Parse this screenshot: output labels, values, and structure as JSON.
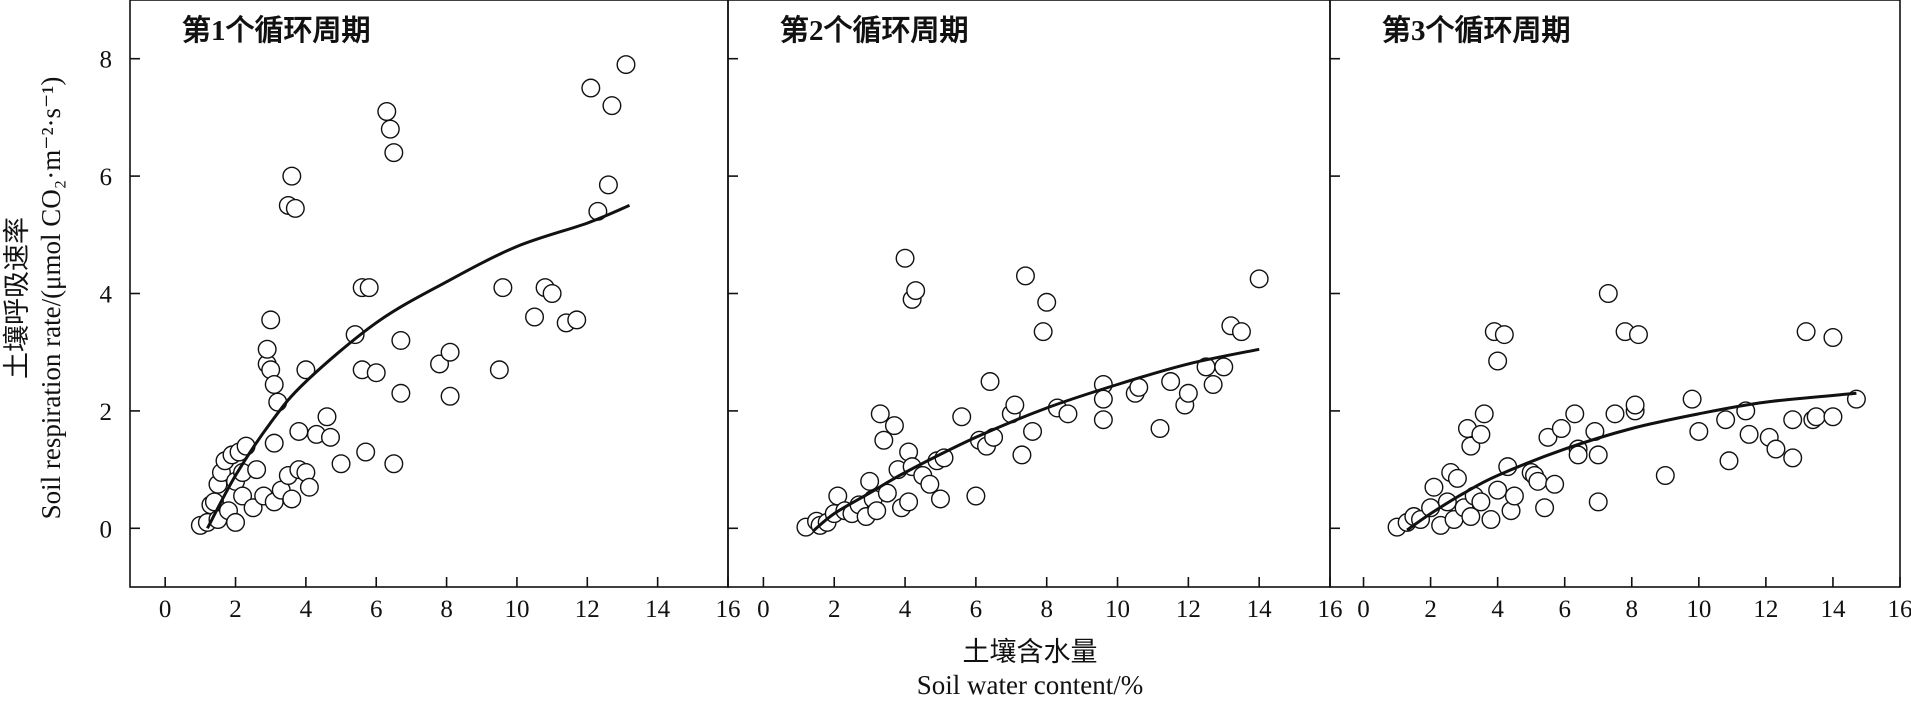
{
  "chart_data": {
    "type": "scatter",
    "x_axis_title_cn": "土壤含水量",
    "x_axis_title_en": "Soil water content/%",
    "y_axis_title_cn": "土壤呼吸速率",
    "y_axis_title_en": "Soil respiration rate/(μmol CO₂·m⁻²·s⁻¹)",
    "xlim": [
      -1,
      16
    ],
    "ylim": [
      -1,
      9
    ],
    "x_ticks": [
      0,
      2,
      4,
      6,
      8,
      10,
      12,
      14,
      16
    ],
    "y_ticks": [
      0,
      2,
      4,
      6,
      8
    ],
    "x_tick_labels": [
      "0",
      "2",
      "4",
      "6",
      "8",
      "10",
      "12",
      "14",
      "16"
    ],
    "y_tick_labels": [
      "0",
      "2",
      "4",
      "6",
      "8"
    ],
    "grid": false,
    "marker": "open-circle",
    "panels": [
      {
        "title": "第1个循环周期",
        "fit_curve": [
          [
            1.2,
            0.0
          ],
          [
            2,
            0.9
          ],
          [
            3,
            1.8
          ],
          [
            4,
            2.5
          ],
          [
            6,
            3.5
          ],
          [
            8,
            4.2
          ],
          [
            10,
            4.8
          ],
          [
            12,
            5.2
          ],
          [
            13.2,
            5.5
          ]
        ],
        "points": [
          [
            1,
            0.05
          ],
          [
            1.2,
            0.1
          ],
          [
            1.3,
            0.4
          ],
          [
            1.4,
            0.45
          ],
          [
            1.5,
            0.15
          ],
          [
            1.5,
            0.75
          ],
          [
            1.6,
            0.95
          ],
          [
            1.7,
            1.15
          ],
          [
            1.8,
            0.3
          ],
          [
            1.9,
            1.25
          ],
          [
            2,
            0.1
          ],
          [
            2,
            0.8
          ],
          [
            2.1,
            1.3
          ],
          [
            2.2,
            0.55
          ],
          [
            2.2,
            0.95
          ],
          [
            2.3,
            1.4
          ],
          [
            2.5,
            0.35
          ],
          [
            2.6,
            1.0
          ],
          [
            2.8,
            0.55
          ],
          [
            2.9,
            2.8
          ],
          [
            2.9,
            3.05
          ],
          [
            3,
            2.7
          ],
          [
            3,
            3.55
          ],
          [
            3.1,
            2.45
          ],
          [
            3.1,
            1.45
          ],
          [
            3.1,
            0.45
          ],
          [
            3.2,
            2.15
          ],
          [
            3.3,
            0.65
          ],
          [
            3.5,
            0.9
          ],
          [
            3.5,
            5.5
          ],
          [
            3.6,
            6.0
          ],
          [
            3.6,
            0.5
          ],
          [
            3.7,
            5.45
          ],
          [
            3.8,
            1.0
          ],
          [
            3.8,
            1.65
          ],
          [
            4,
            2.7
          ],
          [
            4,
            0.95
          ],
          [
            4.1,
            0.7
          ],
          [
            4.3,
            1.6
          ],
          [
            4.6,
            1.9
          ],
          [
            4.7,
            1.55
          ],
          [
            5,
            1.1
          ],
          [
            5.4,
            3.3
          ],
          [
            5.6,
            2.7
          ],
          [
            5.6,
            4.1
          ],
          [
            5.7,
            1.3
          ],
          [
            5.8,
            4.1
          ],
          [
            6,
            2.65
          ],
          [
            6.3,
            7.1
          ],
          [
            6.4,
            6.8
          ],
          [
            6.5,
            6.4
          ],
          [
            6.5,
            1.1
          ],
          [
            6.7,
            3.2
          ],
          [
            6.7,
            2.3
          ],
          [
            7.8,
            2.8
          ],
          [
            8.1,
            3.0
          ],
          [
            8.1,
            2.25
          ],
          [
            9.5,
            2.7
          ],
          [
            9.6,
            4.1
          ],
          [
            10.5,
            3.6
          ],
          [
            10.8,
            4.1
          ],
          [
            11,
            4.0
          ],
          [
            11.4,
            3.5
          ],
          [
            11.7,
            3.55
          ],
          [
            12.1,
            7.5
          ],
          [
            12.3,
            5.4
          ],
          [
            12.6,
            5.85
          ],
          [
            12.7,
            7.2
          ],
          [
            13.1,
            7.9
          ]
        ]
      },
      {
        "title": "第2个循环周期",
        "fit_curve": [
          [
            1.4,
            -0.05
          ],
          [
            2,
            0.25
          ],
          [
            3,
            0.6
          ],
          [
            4,
            0.95
          ],
          [
            6,
            1.55
          ],
          [
            8,
            2.05
          ],
          [
            10,
            2.45
          ],
          [
            12,
            2.8
          ],
          [
            14,
            3.05
          ]
        ],
        "points": [
          [
            1.2,
            0.02
          ],
          [
            1.5,
            0.12
          ],
          [
            1.6,
            0.05
          ],
          [
            1.8,
            0.1
          ],
          [
            2,
            0.25
          ],
          [
            2.1,
            0.55
          ],
          [
            2.3,
            0.3
          ],
          [
            2.5,
            0.25
          ],
          [
            2.7,
            0.4
          ],
          [
            2.9,
            0.2
          ],
          [
            3,
            0.8
          ],
          [
            3.1,
            0.5
          ],
          [
            3.2,
            0.3
          ],
          [
            3.3,
            1.95
          ],
          [
            3.4,
            1.5
          ],
          [
            3.5,
            0.6
          ],
          [
            3.7,
            1.75
          ],
          [
            3.8,
            1.0
          ],
          [
            3.9,
            0.35
          ],
          [
            4,
            4.6
          ],
          [
            4.1,
            0.45
          ],
          [
            4.1,
            1.3
          ],
          [
            4.2,
            3.9
          ],
          [
            4.2,
            1.05
          ],
          [
            4.3,
            4.05
          ],
          [
            4.5,
            0.9
          ],
          [
            4.7,
            0.75
          ],
          [
            4.9,
            1.15
          ],
          [
            5,
            0.5
          ],
          [
            5.1,
            1.2
          ],
          [
            5.6,
            1.9
          ],
          [
            6,
            0.55
          ],
          [
            6.1,
            1.5
          ],
          [
            6.3,
            1.4
          ],
          [
            6.4,
            2.5
          ],
          [
            6.5,
            1.55
          ],
          [
            7,
            1.95
          ],
          [
            7.1,
            2.1
          ],
          [
            7.3,
            1.25
          ],
          [
            7.4,
            4.3
          ],
          [
            7.6,
            1.65
          ],
          [
            7.9,
            3.35
          ],
          [
            8,
            3.85
          ],
          [
            8.3,
            2.05
          ],
          [
            8.6,
            1.95
          ],
          [
            9.6,
            2.45
          ],
          [
            9.6,
            1.85
          ],
          [
            9.6,
            2.2
          ],
          [
            10.5,
            2.3
          ],
          [
            10.6,
            2.4
          ],
          [
            11.2,
            1.7
          ],
          [
            11.5,
            2.5
          ],
          [
            11.9,
            2.1
          ],
          [
            12,
            2.3
          ],
          [
            12.5,
            2.75
          ],
          [
            12.7,
            2.45
          ],
          [
            13,
            2.75
          ],
          [
            13.2,
            3.45
          ],
          [
            13.5,
            3.35
          ],
          [
            14,
            4.25
          ]
        ]
      },
      {
        "title": "第3个循环周期",
        "fit_curve": [
          [
            1.3,
            -0.03
          ],
          [
            2,
            0.25
          ],
          [
            3,
            0.6
          ],
          [
            4,
            0.9
          ],
          [
            6,
            1.35
          ],
          [
            8,
            1.7
          ],
          [
            10,
            1.95
          ],
          [
            12,
            2.15
          ],
          [
            14.7,
            2.3
          ]
        ],
        "points": [
          [
            1,
            0.02
          ],
          [
            1.3,
            0.1
          ],
          [
            1.5,
            0.2
          ],
          [
            1.7,
            0.15
          ],
          [
            2,
            0.35
          ],
          [
            2.1,
            0.7
          ],
          [
            2.3,
            0.05
          ],
          [
            2.5,
            0.45
          ],
          [
            2.6,
            0.95
          ],
          [
            2.7,
            0.15
          ],
          [
            2.8,
            0.85
          ],
          [
            3,
            0.35
          ],
          [
            3.1,
            1.7
          ],
          [
            3.2,
            0.2
          ],
          [
            3.2,
            1.4
          ],
          [
            3.3,
            0.55
          ],
          [
            3.5,
            0.45
          ],
          [
            3.5,
            1.6
          ],
          [
            3.6,
            1.95
          ],
          [
            3.8,
            0.15
          ],
          [
            3.9,
            3.35
          ],
          [
            4,
            2.85
          ],
          [
            4,
            0.65
          ],
          [
            4.2,
            3.3
          ],
          [
            4.3,
            1.05
          ],
          [
            4.4,
            0.3
          ],
          [
            4.5,
            0.55
          ],
          [
            5,
            0.95
          ],
          [
            5.1,
            0.9
          ],
          [
            5.2,
            0.8
          ],
          [
            5.4,
            0.35
          ],
          [
            5.5,
            1.55
          ],
          [
            5.7,
            0.75
          ],
          [
            5.9,
            1.7
          ],
          [
            6.3,
            1.95
          ],
          [
            6.4,
            1.35
          ],
          [
            6.4,
            1.25
          ],
          [
            6.9,
            1.65
          ],
          [
            7,
            0.45
          ],
          [
            7,
            1.25
          ],
          [
            7.3,
            4.0
          ],
          [
            7.5,
            1.95
          ],
          [
            7.8,
            3.35
          ],
          [
            8.1,
            2.0
          ],
          [
            8.1,
            2.1
          ],
          [
            8.2,
            3.3
          ],
          [
            9,
            0.9
          ],
          [
            9.8,
            2.2
          ],
          [
            10,
            1.65
          ],
          [
            10.8,
            1.85
          ],
          [
            10.9,
            1.15
          ],
          [
            11.4,
            2.0
          ],
          [
            11.5,
            1.6
          ],
          [
            12.1,
            1.55
          ],
          [
            12.3,
            1.35
          ],
          [
            12.8,
            1.2
          ],
          [
            12.8,
            1.85
          ],
          [
            13.2,
            3.35
          ],
          [
            13.4,
            1.85
          ],
          [
            13.5,
            1.9
          ],
          [
            14,
            3.25
          ],
          [
            14,
            1.9
          ],
          [
            14.7,
            2.2
          ]
        ]
      }
    ]
  }
}
